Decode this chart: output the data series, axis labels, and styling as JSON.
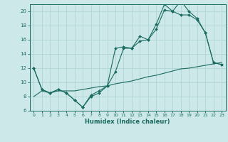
{
  "title": "",
  "xlabel": "Humidex (Indice chaleur)",
  "ylabel": "",
  "bg_color": "#cce8e8",
  "grid_color": "#b0d4d4",
  "line_color": "#1a6b60",
  "xlim": [
    -0.5,
    23.5
  ],
  "ylim": [
    6,
    21
  ],
  "yticks": [
    6,
    8,
    10,
    12,
    14,
    16,
    18,
    20
  ],
  "xticks": [
    0,
    1,
    2,
    3,
    4,
    5,
    6,
    7,
    8,
    9,
    10,
    11,
    12,
    13,
    14,
    15,
    16,
    17,
    18,
    19,
    20,
    21,
    22,
    23
  ],
  "line1_x": [
    0,
    1,
    2,
    3,
    4,
    5,
    6,
    7,
    8,
    9,
    10,
    11,
    12,
    13,
    14,
    15,
    16,
    17,
    18,
    19,
    20,
    21,
    22,
    23
  ],
  "line1_y": [
    12,
    9,
    8.5,
    9.0,
    8.5,
    7.5,
    6.5,
    8.0,
    8.5,
    9.5,
    11.5,
    14.8,
    14.8,
    15.8,
    16.0,
    18.2,
    21.0,
    20.0,
    21.5,
    20.0,
    19.0,
    17.0,
    12.8,
    12.5
  ],
  "line2_x": [
    0,
    1,
    2,
    3,
    4,
    5,
    6,
    7,
    8,
    9,
    10,
    11,
    12,
    13,
    14,
    15,
    16,
    17,
    18,
    19,
    20,
    21,
    22,
    23
  ],
  "line2_y": [
    12,
    9,
    8.5,
    9.0,
    8.5,
    7.5,
    6.5,
    8.2,
    8.8,
    9.5,
    14.8,
    15.0,
    14.8,
    16.5,
    16.0,
    17.5,
    20.2,
    20.0,
    19.5,
    19.5,
    18.8,
    17.0,
    12.8,
    12.5
  ],
  "line3_x": [
    0,
    1,
    2,
    3,
    4,
    5,
    6,
    7,
    8,
    9,
    10,
    11,
    12,
    13,
    14,
    15,
    16,
    17,
    18,
    19,
    20,
    21,
    22,
    23
  ],
  "line3_y": [
    8.0,
    8.8,
    8.5,
    8.8,
    8.8,
    8.8,
    9.0,
    9.2,
    9.4,
    9.5,
    9.8,
    10.0,
    10.2,
    10.5,
    10.8,
    11.0,
    11.3,
    11.6,
    11.9,
    12.0,
    12.2,
    12.4,
    12.6,
    12.8
  ]
}
